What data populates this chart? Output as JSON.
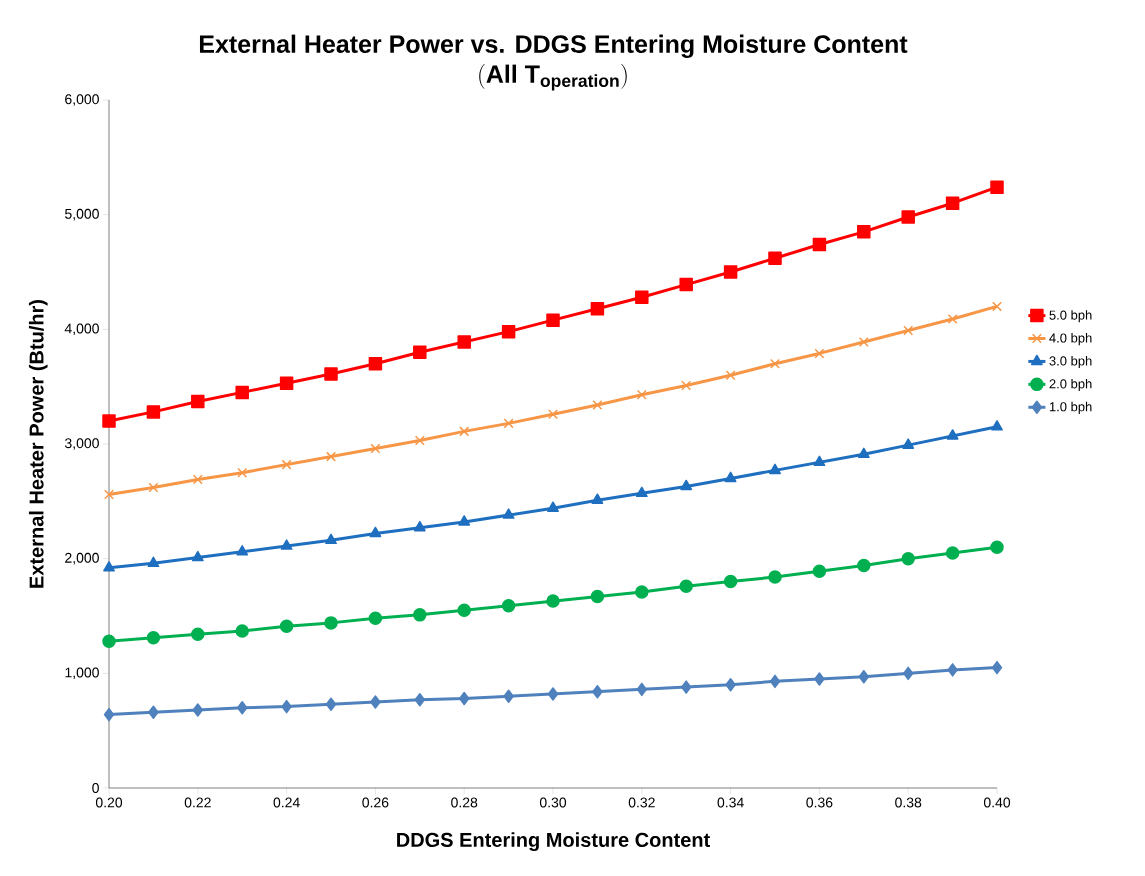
{
  "chart_data": {
    "type": "line",
    "title": "External Heater Power  vs. DDGS  Entering Moisture Content",
    "subtitle": "\\mathbf{(All\\ T_{operation})}",
    "xlabel": "DDGS  Entering Moisture Content",
    "ylabel": "External Heater Power (Btu/hr)",
    "x": [
      0.2,
      0.21,
      0.22,
      0.23,
      0.24,
      0.25,
      0.26,
      0.27,
      0.28,
      0.29,
      0.3,
      0.31,
      0.32,
      0.33,
      0.34,
      0.35,
      0.36,
      0.37,
      0.38,
      0.39,
      0.4
    ],
    "xlim": [
      0.2,
      0.4
    ],
    "xticks": [
      {
        "value": 0.2,
        "label": "0.20"
      },
      {
        "value": 0.22,
        "label": "0.22"
      },
      {
        "value": 0.24,
        "label": "0.24"
      },
      {
        "value": 0.26,
        "label": "0.26"
      },
      {
        "value": 0.28,
        "label": "0.28"
      },
      {
        "value": 0.3,
        "label": "0.30"
      },
      {
        "value": 0.32,
        "label": "0.32"
      },
      {
        "value": 0.34,
        "label": "0.34"
      },
      {
        "value": 0.36,
        "label": "0.36"
      },
      {
        "value": 0.38,
        "label": "0.38"
      },
      {
        "value": 0.4,
        "label": "0.40"
      }
    ],
    "ylim": [
      0,
      6000
    ],
    "yticks": [
      0,
      {
        "value": 1000,
        "label": "1,000"
      },
      {
        "value": 2000,
        "label": "2,000"
      },
      {
        "value": 3000,
        "label": "3,000"
      },
      {
        "value": 4000,
        "label": "4,000"
      },
      {
        "value": 5000,
        "label": "5,000"
      },
      {
        "value": 6000,
        "label": "6,000"
      }
    ],
    "legend": "right",
    "line_style": "solid",
    "series": [
      {
        "name": "5.0 bph",
        "color": "#ff0000",
        "marker": "square",
        "values": [
          3200,
          3280,
          3370,
          3450,
          3530,
          3610,
          3700,
          3800,
          3890,
          3980,
          4080,
          4180,
          4280,
          4390,
          4500,
          4620,
          4740,
          4850,
          4980,
          5100,
          5240
        ]
      },
      {
        "name": "4.0 bph",
        "color": "#f79646",
        "marker": "cross",
        "values": [
          2560,
          2620,
          2690,
          2750,
          2820,
          2890,
          2960,
          3030,
          3110,
          3180,
          3260,
          3340,
          3430,
          3510,
          3600,
          3700,
          3790,
          3890,
          3990,
          4090,
          4200
        ]
      },
      {
        "name": "3.0 bph",
        "color": "#1f6fc0",
        "marker": "triangle",
        "values": [
          1920,
          1960,
          2010,
          2060,
          2110,
          2160,
          2220,
          2270,
          2320,
          2380,
          2440,
          2510,
          2570,
          2630,
          2700,
          2770,
          2840,
          2910,
          2990,
          3070,
          3150
        ]
      },
      {
        "name": "2.0 bph",
        "color": "#00b050",
        "marker": "circle",
        "values": [
          1280,
          1310,
          1340,
          1370,
          1410,
          1440,
          1480,
          1510,
          1550,
          1590,
          1630,
          1670,
          1710,
          1760,
          1800,
          1840,
          1890,
          1940,
          2000,
          2050,
          2100
        ]
      },
      {
        "name": "1.0 bph",
        "color": "#4f81bd",
        "marker": "diamond",
        "values": [
          640,
          660,
          680,
          700,
          710,
          730,
          750,
          770,
          780,
          800,
          820,
          840,
          860,
          880,
          900,
          930,
          950,
          970,
          1000,
          1030,
          1050
        ]
      }
    ]
  }
}
